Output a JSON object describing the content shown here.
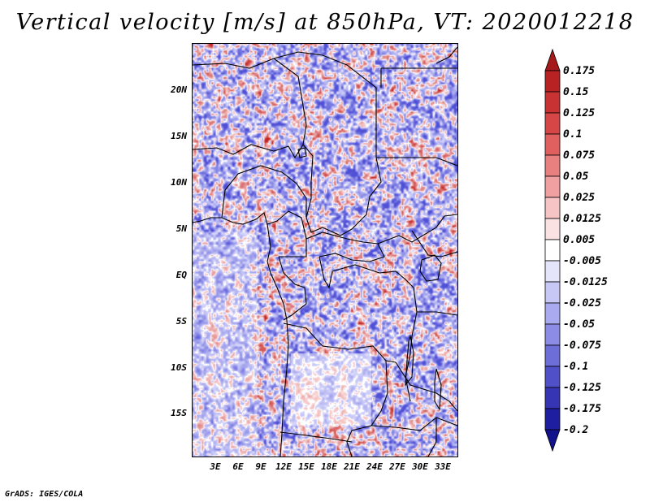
{
  "title": "Vertical velocity [m/s] at 850hPa, VT: 2020012218",
  "footer": "GrADS: IGES/COLA",
  "map": {
    "lat_labels": [
      "20N",
      "15N",
      "10N",
      "5N",
      "EQ",
      "5S",
      "10S",
      "15S"
    ],
    "lon_labels": [
      "3E",
      "6E",
      "9E",
      "12E",
      "15E",
      "18E",
      "21E",
      "24E",
      "27E",
      "30E",
      "33E"
    ]
  },
  "colorbar": {
    "labels": [
      "0.175",
      "0.15",
      "0.125",
      "0.1",
      "0.075",
      "0.05",
      "0.025",
      "0.0125",
      "0.005",
      "-0.005",
      "-0.0125",
      "-0.025",
      "-0.05",
      "-0.075",
      "-0.1",
      "-0.125",
      "-0.175",
      "-0.2"
    ],
    "colors": [
      "#a51a1a",
      "#b82222",
      "#c83232",
      "#d64646",
      "#e06060",
      "#e88080",
      "#f0a0a0",
      "#f6c4c4",
      "#fbe2e2",
      "#ffffff",
      "#e4e4fb",
      "#c8c8f6",
      "#aaaaf0",
      "#8c8ce6",
      "#6e6ed8",
      "#5050c8",
      "#3636b4",
      "#1e1ea0",
      "#12128c"
    ]
  }
}
